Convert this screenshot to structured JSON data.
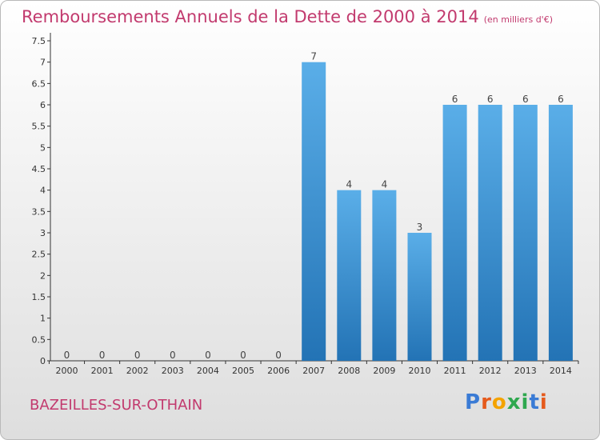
{
  "title": "Remboursements Annuels de la Dette de 2000 à 2014",
  "unit": "(en milliers d'€)",
  "commune": "BAZEILLES-SUR-OTHAIN",
  "brand": "Proxiti",
  "colors": {
    "title": "#c23a6e",
    "bar_top": "#5aaee8",
    "bar_bottom": "#2373b5"
  },
  "chart_data": {
    "type": "bar",
    "title": "Remboursements Annuels de la Dette de 2000 à 2014",
    "xlabel": "",
    "ylabel": "",
    "categories": [
      "2000",
      "2001",
      "2002",
      "2003",
      "2004",
      "2005",
      "2006",
      "2007",
      "2008",
      "2009",
      "2010",
      "2011",
      "2012",
      "2013",
      "2014"
    ],
    "values": [
      0,
      0,
      0,
      0,
      0,
      0,
      0,
      7,
      4,
      4,
      3,
      6,
      6,
      6,
      6
    ],
    "ylim": [
      0,
      7.5
    ],
    "yticks": [
      "0",
      "0.5",
      "1",
      "1.5",
      "2",
      "2.5",
      "3",
      "3.5",
      "4",
      "4.5",
      "5",
      "5.5",
      "6",
      "6.5",
      "7",
      "7.5"
    ],
    "grid": false,
    "legend": "none"
  }
}
